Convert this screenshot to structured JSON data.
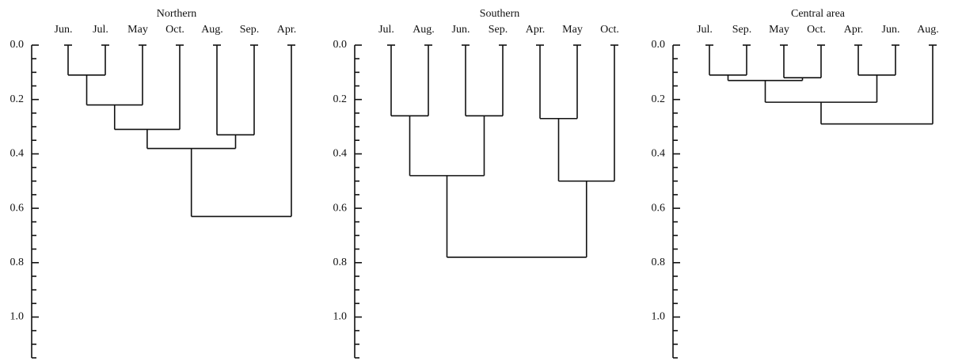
{
  "chart_data": [
    {
      "type": "dendrogram",
      "title": "Northern",
      "categories": [
        "Jun.",
        "Jul.",
        "May",
        "Oct.",
        "Aug.",
        "Sep.",
        "Apr."
      ],
      "merges": [
        {
          "children": [
            0,
            1
          ],
          "height": 0.11
        },
        {
          "children": [
            7,
            2
          ],
          "height": 0.22
        },
        {
          "children": [
            8,
            3
          ],
          "height": 0.31
        },
        {
          "children": [
            4,
            5
          ],
          "height": 0.33
        },
        {
          "children": [
            9,
            10
          ],
          "height": 0.38
        },
        {
          "children": [
            11,
            6
          ],
          "height": 0.63
        }
      ],
      "ylim": [
        0,
        1.15
      ],
      "yticks": [
        {
          "value": 0,
          "label": "0.0"
        },
        0.2,
        0.4,
        0.6,
        0.8,
        {
          "value": 1,
          "label": "1.0"
        }
      ],
      "minor_yticks": [
        0.05,
        0.1,
        0.15,
        0.25,
        0.3,
        0.35,
        0.45,
        0.5,
        0.55,
        0.65,
        0.7,
        0.75,
        0.85,
        0.9,
        0.95,
        1.05,
        1.1,
        1.15
      ],
      "color": "#111111"
    },
    {
      "type": "dendrogram",
      "title": "Southern",
      "categories": [
        "Jul.",
        "Aug.",
        "Jun.",
        "Sep.",
        "Apr.",
        "May",
        "Oct."
      ],
      "merges": [
        {
          "children": [
            0,
            1
          ],
          "height": 0.26
        },
        {
          "children": [
            2,
            3
          ],
          "height": 0.26
        },
        {
          "children": [
            4,
            5
          ],
          "height": 0.27
        },
        {
          "children": [
            7,
            8
          ],
          "height": 0.48
        },
        {
          "children": [
            9,
            6
          ],
          "height": 0.5
        },
        {
          "children": [
            10,
            11
          ],
          "height": 0.78
        }
      ],
      "ylim": [
        0,
        1.15
      ],
      "yticks": [
        {
          "value": 0,
          "label": "0.0"
        },
        0.2,
        0.4,
        0.6,
        0.8,
        {
          "value": 1,
          "label": "1.0"
        }
      ],
      "minor_yticks": [
        0.05,
        0.1,
        0.15,
        0.25,
        0.3,
        0.35,
        0.45,
        0.5,
        0.55,
        0.65,
        0.7,
        0.75,
        0.85,
        0.9,
        0.95,
        1.05,
        1.1,
        1.15
      ],
      "color": "#111111"
    },
    {
      "type": "dendrogram",
      "title": "Central area",
      "categories": [
        "Jul.",
        "Sep.",
        "May",
        "Oct.",
        "Apr.",
        "Jun.",
        "Aug."
      ],
      "merges": [
        {
          "children": [
            0,
            1
          ],
          "height": 0.11
        },
        {
          "children": [
            2,
            3
          ],
          "height": 0.12
        },
        {
          "children": [
            7,
            8
          ],
          "height": 0.13
        },
        {
          "children": [
            4,
            5
          ],
          "height": 0.11
        },
        {
          "children": [
            9,
            10
          ],
          "height": 0.21
        },
        {
          "children": [
            11,
            6
          ],
          "height": 0.29
        }
      ],
      "ylim": [
        0,
        1.15
      ],
      "yticks": [
        {
          "value": 0,
          "label": "0.0"
        },
        0.2,
        0.4,
        0.6,
        0.8,
        {
          "value": 1,
          "label": "1.0"
        }
      ],
      "minor_yticks": [
        0.05,
        0.1,
        0.15,
        0.25,
        0.3,
        0.35,
        0.45,
        0.5,
        0.55,
        0.65,
        0.7,
        0.75,
        0.85,
        0.9,
        0.95,
        1.05,
        1.1,
        1.15
      ],
      "color": "#111111"
    }
  ]
}
